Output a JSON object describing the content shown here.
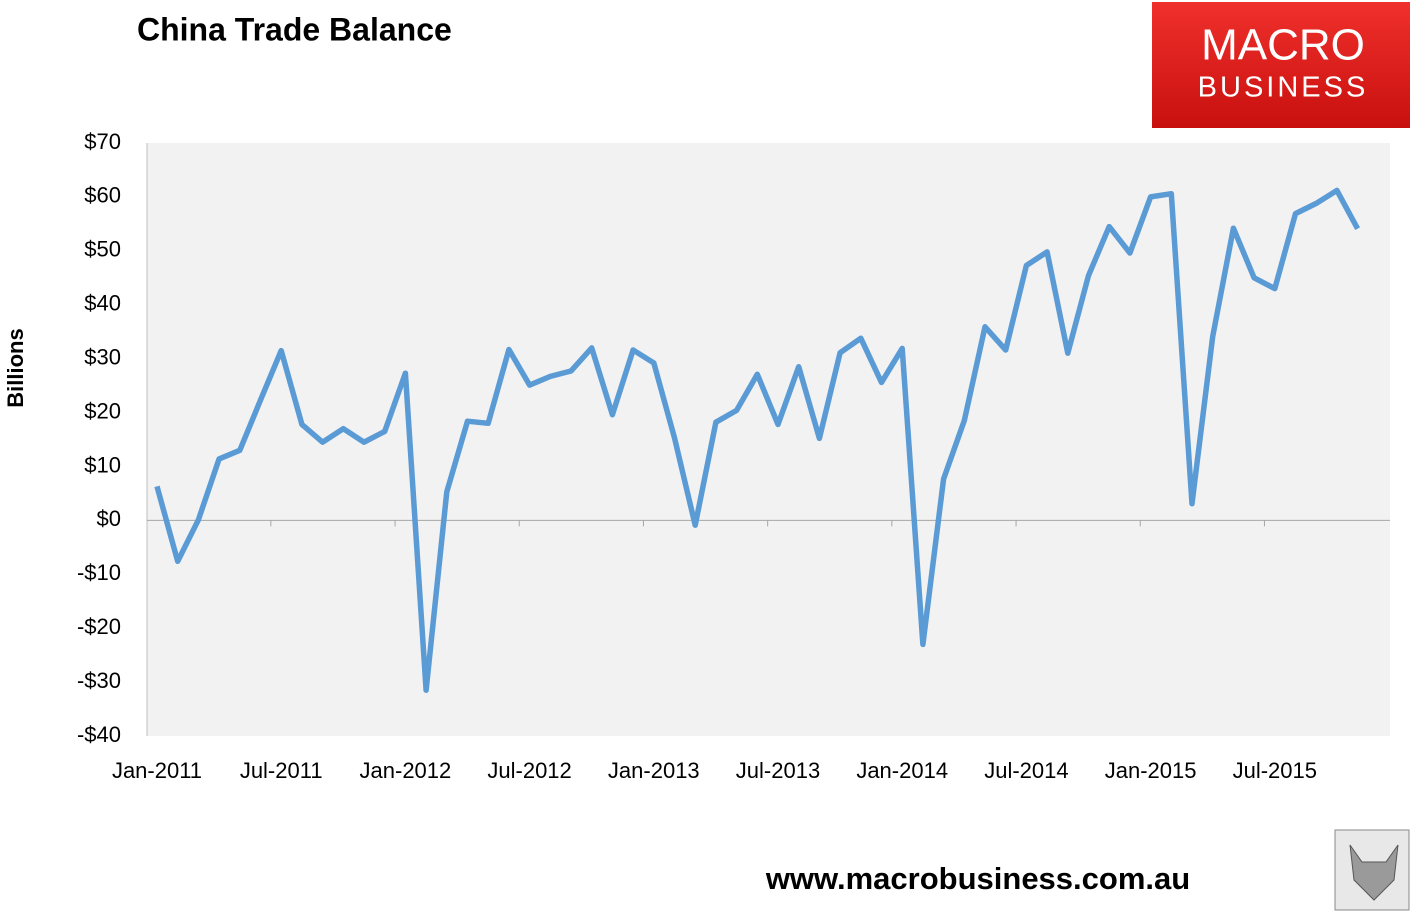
{
  "chart_data": {
    "type": "line",
    "title": "China Trade Balance",
    "y_label": "Billions",
    "logo": [
      "MACRO",
      "BUSINESS"
    ],
    "footer": "www.macrobusiness.com.au",
    "categories": [
      "Jan-2011",
      null,
      null,
      null,
      null,
      null,
      "Jul-2011",
      null,
      null,
      null,
      null,
      null,
      "Jan-2012",
      null,
      null,
      null,
      null,
      null,
      "Jul-2012",
      null,
      null,
      null,
      null,
      null,
      "Jan-2013",
      null,
      null,
      null,
      null,
      null,
      "Jul-2013",
      null,
      null,
      null,
      null,
      null,
      "Jan-2014",
      null,
      null,
      null,
      null,
      null,
      "Jul-2014",
      null,
      null,
      null,
      null,
      null,
      "Jan-2015",
      null,
      null,
      null,
      null,
      null,
      "Jul-2015",
      null,
      null,
      null,
      null
    ],
    "series": [
      {
        "color": "#5b9bd5",
        "values": [
          6.3,
          -7.6,
          0.1,
          11.4,
          13.0,
          22.3,
          31.5,
          17.8,
          14.5,
          17.0,
          14.5,
          16.5,
          27.3,
          -31.5,
          5.3,
          18.4,
          18.0,
          31.7,
          25.1,
          26.7,
          27.7,
          32.0,
          19.6,
          31.6,
          29.2,
          15.3,
          -0.9,
          18.2,
          20.4,
          27.1,
          17.8,
          28.5,
          15.2,
          31.1,
          33.8,
          25.6,
          31.9,
          -23.0,
          7.7,
          18.5,
          35.9,
          31.6,
          47.3,
          49.8,
          31.0,
          45.4,
          54.5,
          49.6,
          60.0,
          60.6,
          3.1,
          34.1,
          54.2,
          45.0,
          43.0,
          56.9,
          58.8,
          61.2,
          54.1
        ]
      }
    ],
    "ylim": [
      -40,
      70
    ],
    "yticks": [
      {
        "value": -40,
        "label": "-$40"
      },
      {
        "value": -30,
        "label": "-$30"
      },
      {
        "value": -20,
        "label": "-$20"
      },
      {
        "value": -10,
        "label": "-$10"
      },
      {
        "value": 0,
        "label": "$0"
      },
      {
        "value": 10,
        "label": "$10"
      },
      {
        "value": 20,
        "label": "$20"
      },
      {
        "value": 30,
        "label": "$30"
      },
      {
        "value": 40,
        "label": "$40"
      },
      {
        "value": 50,
        "label": "$50"
      },
      {
        "value": 60,
        "label": "$60"
      },
      {
        "value": 70,
        "label": "$70"
      }
    ],
    "grid": false
  }
}
